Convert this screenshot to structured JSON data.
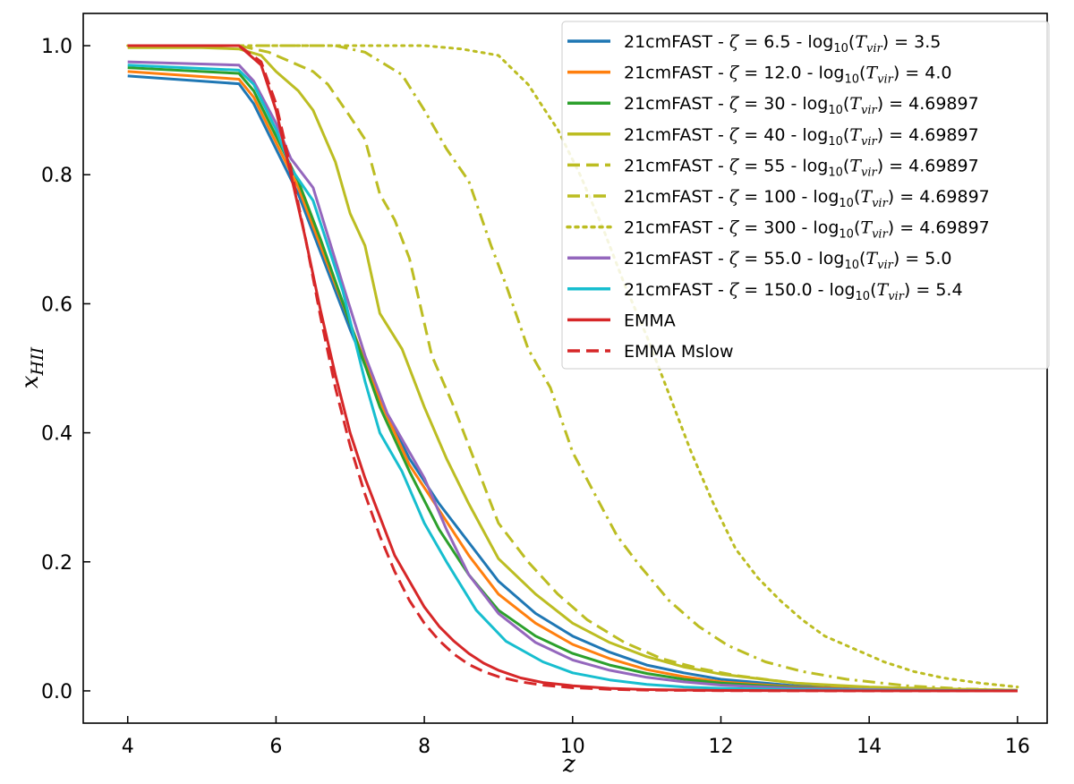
{
  "chart_data": {
    "type": "line",
    "title": "",
    "xlabel": "z",
    "ylabel": "x_HII",
    "ylabel_main": "x",
    "ylabel_sub": "HII",
    "xlim": [
      3.4,
      16.4
    ],
    "ylim": [
      -0.05,
      1.05
    ],
    "xticks": [
      4,
      6,
      8,
      10,
      12,
      14,
      16
    ],
    "yticks": [
      0.0,
      0.2,
      0.4,
      0.6,
      0.8,
      1.0
    ],
    "xtick_labels": [
      "4",
      "6",
      "8",
      "10",
      "12",
      "14",
      "16"
    ],
    "ytick_labels": [
      "0.0",
      "0.2",
      "0.4",
      "0.6",
      "0.8",
      "1.0"
    ],
    "legend_position": "top-right",
    "series": [
      {
        "name": "21cmFAST - ζ = 6.5 - log10(Tvir) = 3.5",
        "zeta": "6.5",
        "tvir": "3.5",
        "color": "#1f77b4",
        "style": "solid",
        "x": [
          4,
          5.5,
          5.7,
          6.0,
          6.3,
          6.6,
          7.0,
          7.4,
          7.8,
          8.2,
          8.6,
          9.0,
          9.5,
          10,
          10.5,
          11,
          11.5,
          12,
          13,
          14,
          15,
          16
        ],
        "values": [
          0.953,
          0.941,
          0.91,
          0.84,
          0.77,
          0.68,
          0.56,
          0.45,
          0.36,
          0.29,
          0.23,
          0.17,
          0.12,
          0.085,
          0.06,
          0.04,
          0.028,
          0.018,
          0.008,
          0.004,
          0.002,
          0.001
        ]
      },
      {
        "name": "21cmFAST - ζ = 12.0 - log10(Tvir) = 4.0",
        "zeta": "12.0",
        "tvir": "4.0",
        "color": "#ff7f0e",
        "style": "solid",
        "x": [
          4,
          5.5,
          5.7,
          6.0,
          6.3,
          6.6,
          7.0,
          7.4,
          7.8,
          8.2,
          8.6,
          9.0,
          9.5,
          10,
          10.5,
          11,
          11.5,
          12,
          13,
          14,
          15,
          16
        ],
        "values": [
          0.96,
          0.948,
          0.92,
          0.85,
          0.78,
          0.69,
          0.57,
          0.45,
          0.35,
          0.28,
          0.21,
          0.15,
          0.105,
          0.072,
          0.05,
          0.033,
          0.022,
          0.014,
          0.006,
          0.003,
          0.0015,
          0.001
        ]
      },
      {
        "name": "21cmFAST - ζ = 30 - log10(Tvir) = 4.69897",
        "zeta": "30",
        "tvir": "4.69897",
        "color": "#2ca02c",
        "style": "solid",
        "x": [
          4,
          5.5,
          5.7,
          6.0,
          6.3,
          6.6,
          7.0,
          7.4,
          7.8,
          8.2,
          8.6,
          9.0,
          9.5,
          10,
          10.5,
          11,
          11.5,
          12,
          13,
          14,
          15,
          16
        ],
        "values": [
          0.966,
          0.957,
          0.93,
          0.86,
          0.79,
          0.7,
          0.57,
          0.44,
          0.34,
          0.25,
          0.18,
          0.125,
          0.085,
          0.058,
          0.04,
          0.027,
          0.018,
          0.012,
          0.005,
          0.002,
          0.001,
          0.0005
        ]
      },
      {
        "name": "21cmFAST - ζ = 40 - log10(Tvir) = 4.69897",
        "zeta": "40",
        "tvir": "4.69897",
        "color": "#bcbd22",
        "style": "solid",
        "x": [
          4,
          5.0,
          5.5,
          5.8,
          6.0,
          6.3,
          6.5,
          6.8,
          7.0,
          7.2,
          7.4,
          7.7,
          8.0,
          8.3,
          8.6,
          9.0,
          9.5,
          10,
          10.5,
          11,
          11.5,
          12,
          13,
          14,
          15,
          16
        ],
        "values": [
          0.997,
          0.997,
          0.995,
          0.985,
          0.96,
          0.93,
          0.9,
          0.82,
          0.74,
          0.69,
          0.585,
          0.53,
          0.44,
          0.36,
          0.29,
          0.205,
          0.15,
          0.105,
          0.075,
          0.053,
          0.037,
          0.026,
          0.012,
          0.006,
          0.003,
          0.001
        ]
      },
      {
        "name": "21cmFAST - ζ = 55 - log10(Tvir) = 4.69897",
        "zeta": "55",
        "tvir": "4.69897",
        "color": "#bcbd22",
        "style": "dashed",
        "x": [
          4,
          5.5,
          5.9,
          6.2,
          6.5,
          6.7,
          7.0,
          7.2,
          7.4,
          7.6,
          7.8,
          8.1,
          8.4,
          8.7,
          9.0,
          9.4,
          9.8,
          10.2,
          10.7,
          11.2,
          11.7,
          12.2,
          13,
          14,
          15,
          16
        ],
        "values": [
          1.0,
          1.0,
          0.99,
          0.975,
          0.96,
          0.94,
          0.89,
          0.855,
          0.77,
          0.73,
          0.67,
          0.52,
          0.44,
          0.35,
          0.26,
          0.2,
          0.15,
          0.11,
          0.075,
          0.05,
          0.035,
          0.024,
          0.012,
          0.005,
          0.002,
          0.001
        ]
      },
      {
        "name": "21cmFAST - ζ = 100 - log10(Tvir) = 4.69897",
        "zeta": "100",
        "tvir": "4.69897",
        "color": "#bcbd22",
        "style": "dashdot",
        "x": [
          4,
          5.5,
          6.3,
          6.8,
          7.2,
          7.7,
          8.0,
          8.3,
          8.6,
          8.9,
          9.1,
          9.4,
          9.7,
          10.0,
          10.3,
          10.6,
          10.9,
          11.3,
          11.7,
          12.1,
          12.6,
          13.1,
          13.7,
          14.5,
          15.3,
          16
        ],
        "values": [
          1.0,
          1.0,
          1.0,
          1.0,
          0.99,
          0.955,
          0.9,
          0.84,
          0.79,
          0.69,
          0.63,
          0.53,
          0.47,
          0.37,
          0.305,
          0.24,
          0.195,
          0.14,
          0.1,
          0.07,
          0.045,
          0.03,
          0.018,
          0.008,
          0.003,
          0.001
        ]
      },
      {
        "name": "21cmFAST - ζ = 300 - log10(Tvir) = 4.69897",
        "zeta": "300",
        "tvir": "4.69897",
        "color": "#bcbd22",
        "style": "dotted",
        "x": [
          4,
          5.5,
          7.0,
          7.5,
          8.0,
          8.5,
          9.0,
          9.4,
          9.8,
          10.1,
          10.4,
          10.7,
          11.0,
          11.3,
          11.6,
          11.9,
          12.2,
          12.5,
          12.8,
          13.1,
          13.4,
          13.8,
          14.2,
          14.6,
          15.0,
          15.5,
          16
        ],
        "values": [
          1.0,
          1.0,
          1.0,
          1.0,
          1.0,
          0.995,
          0.985,
          0.94,
          0.87,
          0.8,
          0.72,
          0.63,
          0.55,
          0.46,
          0.37,
          0.29,
          0.22,
          0.175,
          0.14,
          0.11,
          0.085,
          0.065,
          0.045,
          0.03,
          0.02,
          0.012,
          0.006
        ]
      },
      {
        "name": "21cmFAST - ζ = 55.0 - log10(Tvir) = 5.0",
        "zeta": "55.0",
        "tvir": "5.0",
        "color": "#9467bd",
        "style": "solid",
        "x": [
          4,
          5.5,
          5.7,
          6.0,
          6.2,
          6.5,
          6.9,
          7.2,
          7.5,
          7.8,
          8.0,
          8.3,
          8.6,
          9.0,
          9.5,
          10,
          10.5,
          11,
          11.5,
          12,
          13,
          14,
          15,
          16
        ],
        "values": [
          0.975,
          0.97,
          0.945,
          0.88,
          0.825,
          0.78,
          0.63,
          0.52,
          0.43,
          0.37,
          0.33,
          0.25,
          0.18,
          0.12,
          0.075,
          0.048,
          0.032,
          0.021,
          0.014,
          0.009,
          0.004,
          0.002,
          0.0008,
          0.0003
        ]
      },
      {
        "name": "21cmFAST - ζ = 150.0 - log10(Tvir) = 5.4",
        "zeta": "150.0",
        "tvir": "5.4",
        "color": "#17becf",
        "style": "solid",
        "x": [
          4,
          5.5,
          5.7,
          6.0,
          6.2,
          6.5,
          6.9,
          7.2,
          7.4,
          7.7,
          8.0,
          8.3,
          8.7,
          9.1,
          9.6,
          10,
          10.5,
          11,
          11.5,
          12,
          13,
          14,
          15,
          16
        ],
        "values": [
          0.97,
          0.962,
          0.94,
          0.87,
          0.81,
          0.76,
          0.62,
          0.48,
          0.4,
          0.34,
          0.26,
          0.2,
          0.125,
          0.077,
          0.045,
          0.028,
          0.017,
          0.01,
          0.006,
          0.004,
          0.002,
          0.001,
          0.0005,
          0.0002
        ]
      },
      {
        "name": "EMMA",
        "color": "#d62728",
        "style": "solid",
        "x": [
          4,
          5.5,
          5.8,
          6.0,
          6.2,
          6.4,
          6.6,
          6.8,
          7.0,
          7.2,
          7.4,
          7.6,
          7.8,
          8.0,
          8.2,
          8.4,
          8.6,
          8.8,
          9.0,
          9.3,
          9.6,
          10,
          10.5,
          11,
          12,
          13,
          14,
          16
        ],
        "values": [
          1.0,
          1.0,
          0.97,
          0.9,
          0.8,
          0.7,
          0.59,
          0.49,
          0.4,
          0.33,
          0.27,
          0.21,
          0.17,
          0.13,
          0.1,
          0.077,
          0.058,
          0.043,
          0.032,
          0.02,
          0.013,
          0.008,
          0.004,
          0.002,
          0.0006,
          0.0002,
          0.0001,
          0.0
        ]
      },
      {
        "name": "EMMA Mslow",
        "color": "#d62728",
        "style": "dashed",
        "x": [
          4,
          5.5,
          5.8,
          6.0,
          6.2,
          6.4,
          6.6,
          6.8,
          7.0,
          7.2,
          7.4,
          7.6,
          7.8,
          8.0,
          8.2,
          8.4,
          8.6,
          8.8,
          9.0,
          9.3,
          9.6,
          10,
          10.5,
          11,
          12,
          13,
          14,
          16
        ],
        "values": [
          1.0,
          1.0,
          0.975,
          0.91,
          0.81,
          0.7,
          0.58,
          0.47,
          0.38,
          0.305,
          0.24,
          0.185,
          0.14,
          0.105,
          0.078,
          0.057,
          0.041,
          0.03,
          0.022,
          0.014,
          0.009,
          0.005,
          0.0025,
          0.0012,
          0.0003,
          0.0001,
          0.0,
          0.0
        ]
      }
    ]
  }
}
